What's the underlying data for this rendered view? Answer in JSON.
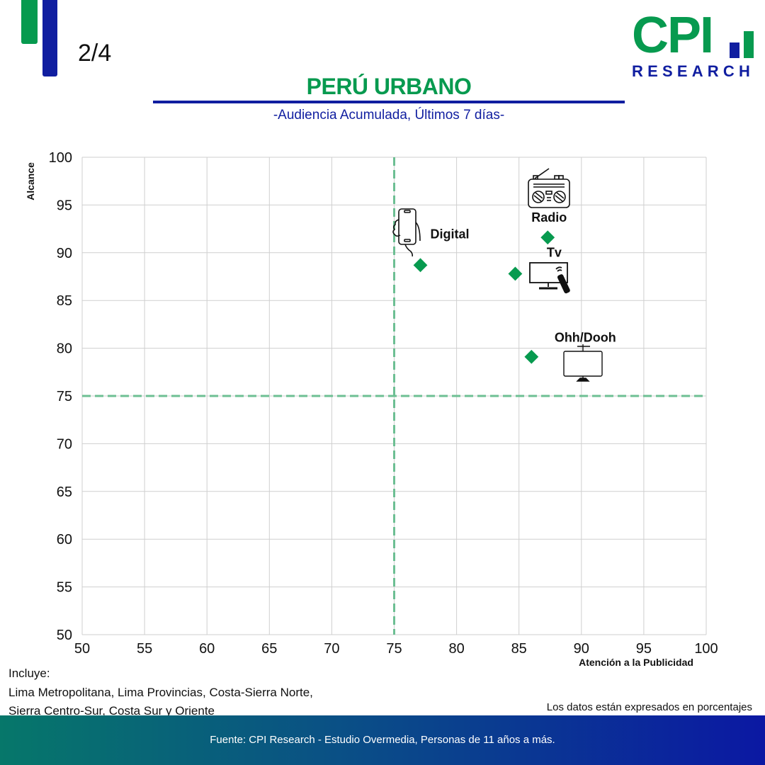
{
  "header": {
    "page_indicator": "2/4",
    "logo": {
      "main": "CPI",
      "sub": "RESEARCH"
    },
    "title": "PERÚ URBANO",
    "subtitle": "-Audiencia Acumulada, Últimos 7 días-"
  },
  "colors": {
    "green": "#079a4f",
    "blue": "#101ea0",
    "marker": "#079a4f",
    "reference_line": "#6dbf93",
    "grid": "#cfcfcf"
  },
  "chart_data": {
    "type": "scatter",
    "title": "PERÚ URBANO",
    "subtitle": "-Audiencia Acumulada, Últimos 7 días-",
    "xlabel": "Atención a la Publicidad",
    "ylabel": "Alcance",
    "xlim": [
      50,
      100
    ],
    "ylim": [
      50,
      100
    ],
    "xticks": [
      50,
      55,
      60,
      65,
      70,
      75,
      80,
      85,
      90,
      95,
      100
    ],
    "yticks": [
      50,
      55,
      60,
      65,
      70,
      75,
      80,
      85,
      90,
      95,
      100
    ],
    "grid": true,
    "reference_lines": {
      "x": 75,
      "y": 75,
      "style": "dashed"
    },
    "points": [
      {
        "label": "Digital",
        "icon": "smartphone-icon",
        "x": 77.1,
        "y": 88.7
      },
      {
        "label": "Radio",
        "icon": "radio-icon",
        "x": 87.3,
        "y": 91.6
      },
      {
        "label": "Tv",
        "icon": "tv-icon",
        "x": 84.7,
        "y": 87.8
      },
      {
        "label": "Ohh/Dooh",
        "icon": "billboard-screen-icon",
        "x": 86.0,
        "y": 79.1
      }
    ]
  },
  "notes": {
    "includes_label": "Incluye:",
    "includes_line1": "Lima Metropolitana, Lima Provincias, Costa-Sierra Norte,",
    "includes_line2": "Sierra Centro-Sur, Costa Sur y Oriente",
    "units_note": "Los datos están expresados en porcentajes"
  },
  "footer": {
    "source": "Fuente: CPI Research - Estudio Overmedia, Personas de 11 años a más."
  }
}
